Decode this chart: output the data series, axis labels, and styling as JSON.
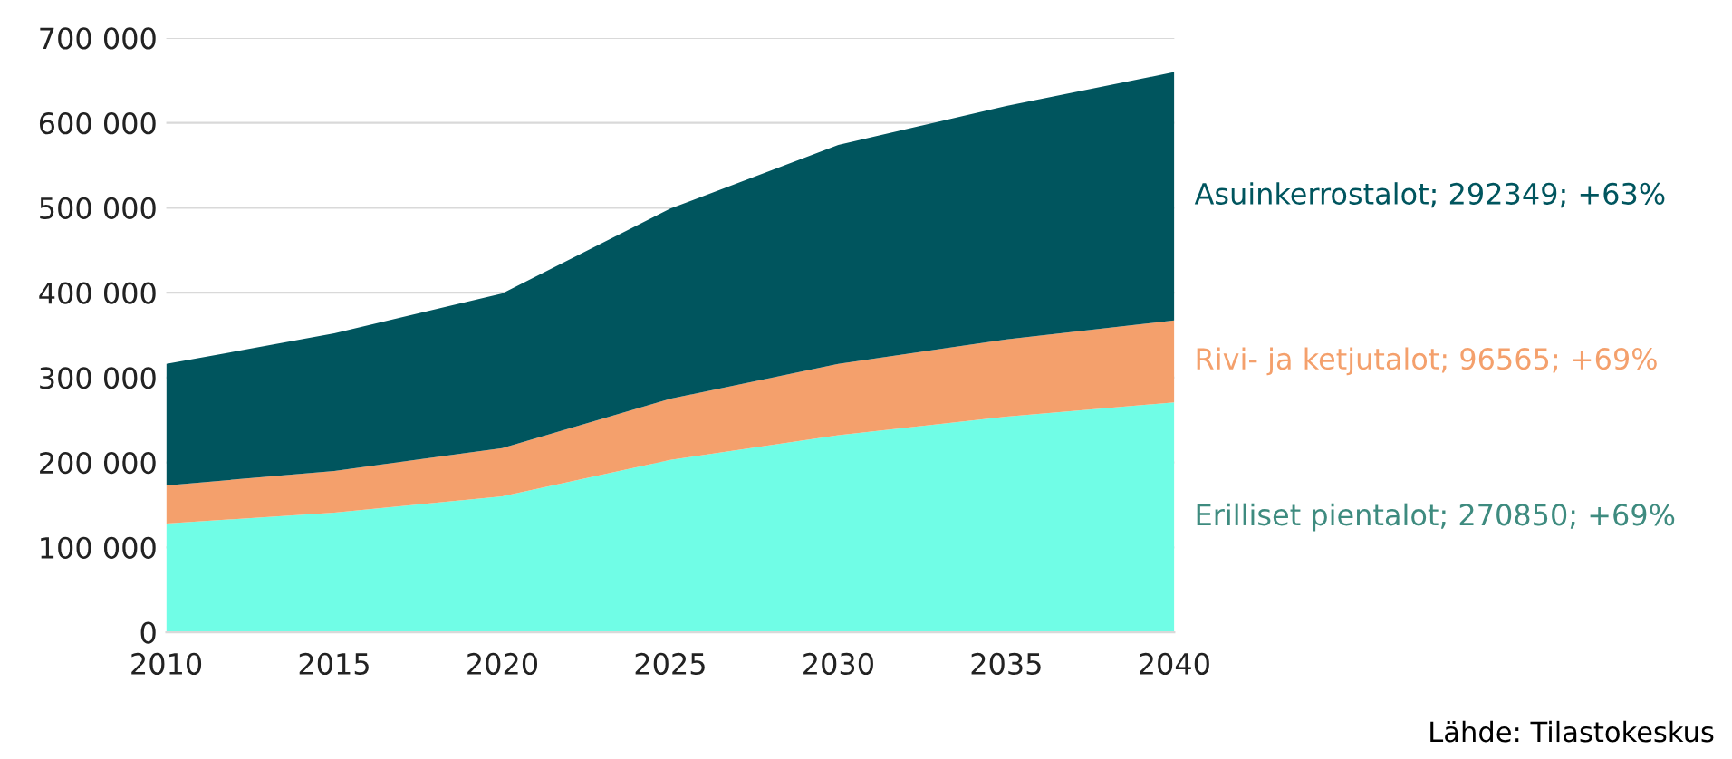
{
  "chart_data": {
    "type": "area",
    "stacked": true,
    "x": [
      2010,
      2015,
      2020,
      2025,
      2030,
      2035,
      2040
    ],
    "series": [
      {
        "name": "Erilliset pientalot; 270850; +69%",
        "color": "#70fde6",
        "values": [
          128000,
          141000,
          160000,
          203000,
          232000,
          254000,
          270850
        ]
      },
      {
        "name": "Rivi- ja ketjutalot; 96565; +69%",
        "color": "#f4a06c",
        "values": [
          45000,
          49000,
          57000,
          72000,
          84000,
          91000,
          96565
        ]
      },
      {
        "name": "Asuinkerrostalot; 292349; +63%",
        "color": "#00555e",
        "values": [
          143000,
          162000,
          182000,
          224000,
          258000,
          275000,
          292349
        ]
      }
    ],
    "xlim": [
      2010,
      2040
    ],
    "xticks": [
      2010,
      2015,
      2020,
      2025,
      2030,
      2035,
      2040
    ],
    "ylim": [
      0,
      700000
    ],
    "yticks": [
      {
        "value": 0,
        "label": "0"
      },
      {
        "value": 100000,
        "label": "100 000"
      },
      {
        "value": 200000,
        "label": "200 000"
      },
      {
        "value": 300000,
        "label": "300 000"
      },
      {
        "value": 400000,
        "label": "400 000"
      },
      {
        "value": 500000,
        "label": "500 000"
      },
      {
        "value": 600000,
        "label": "600 000"
      },
      {
        "value": 700000,
        "label": "700 000"
      }
    ],
    "grid": "y",
    "legend": false,
    "annotations": [
      "Lähde: Tilastokeskus"
    ]
  }
}
